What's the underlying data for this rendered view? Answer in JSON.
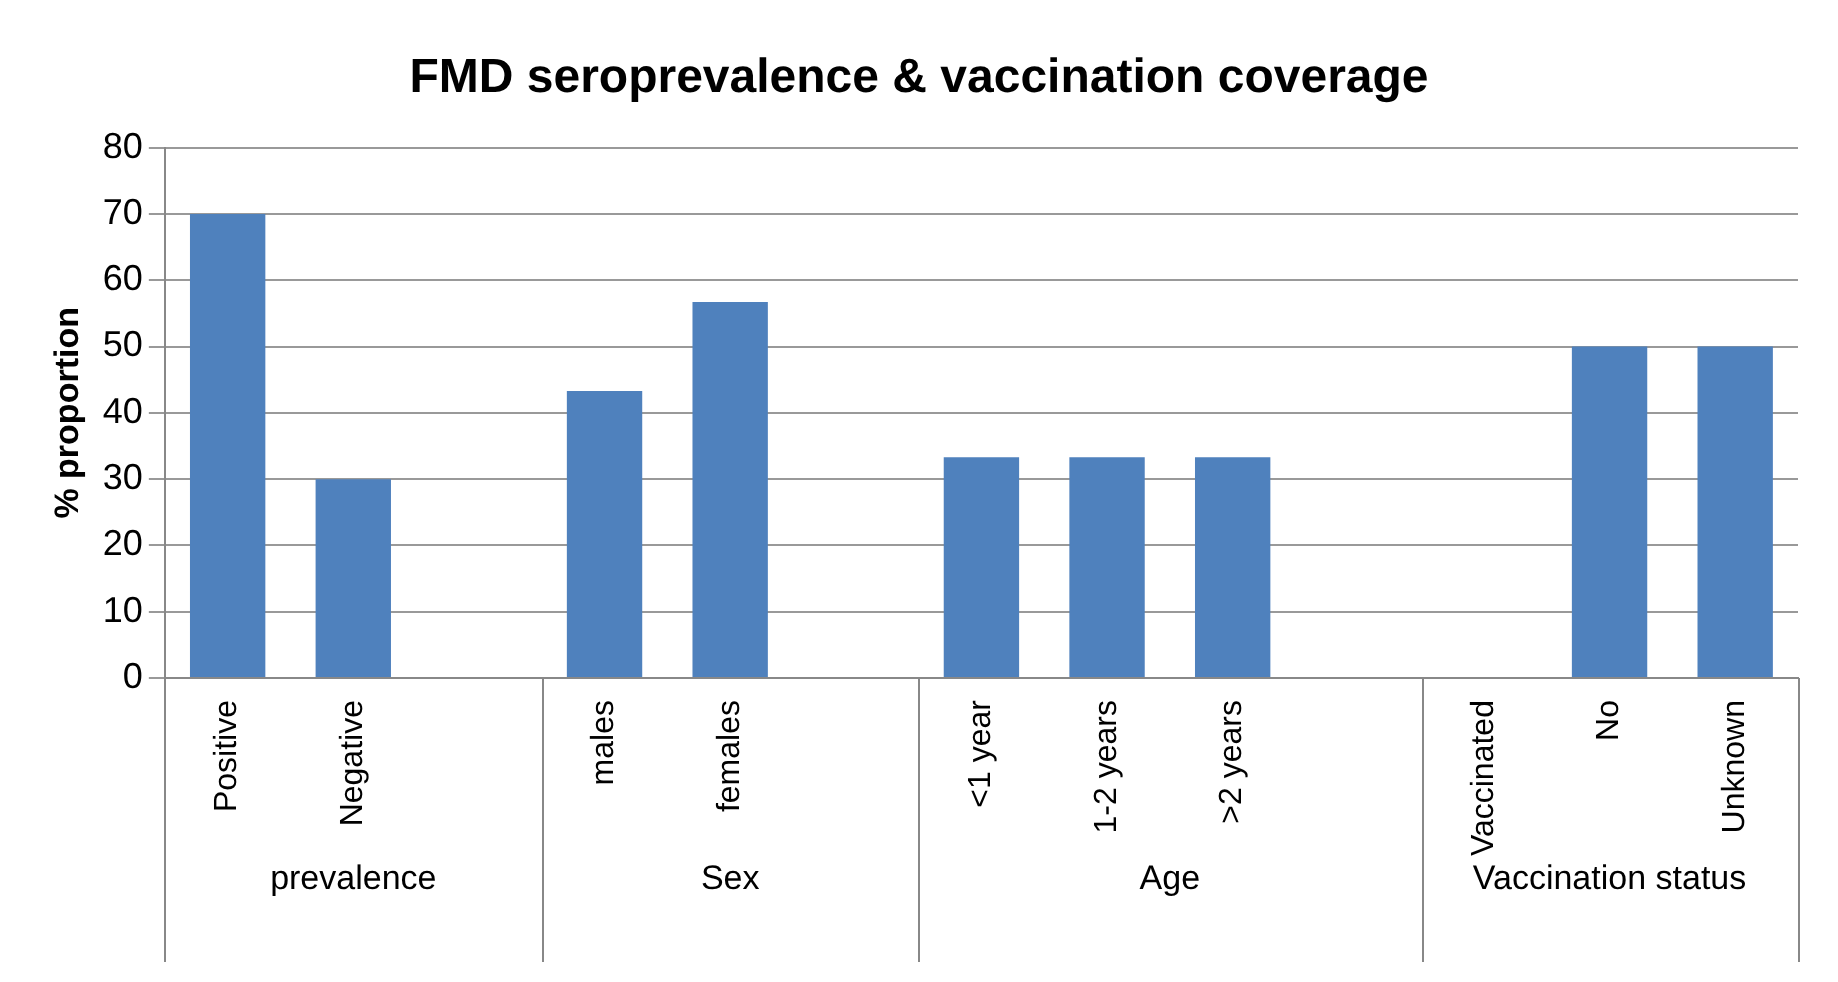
{
  "chart_data": {
    "type": "bar",
    "title": "FMD seroprevalence & vaccination coverage",
    "ylabel": "% proportion",
    "categories": [
      "Positive",
      "Negative",
      null,
      "males",
      "females",
      null,
      "<1 year",
      "1-2 years",
      ">2 years",
      null,
      "Vaccinated",
      "No",
      "Unknown"
    ],
    "values": [
      70,
      30,
      null,
      43.3,
      56.7,
      null,
      33.3,
      33.3,
      33.3,
      null,
      0,
      50,
      50
    ],
    "color": "#4f81bd",
    "ylim": [
      0,
      80
    ],
    "yticks": [
      0,
      10,
      20,
      30,
      40,
      50,
      60,
      70,
      80
    ],
    "grid": "y",
    "legend": false,
    "annotations": [
      "prevalence",
      "Sex",
      "Age",
      "Vaccination status"
    ]
  }
}
